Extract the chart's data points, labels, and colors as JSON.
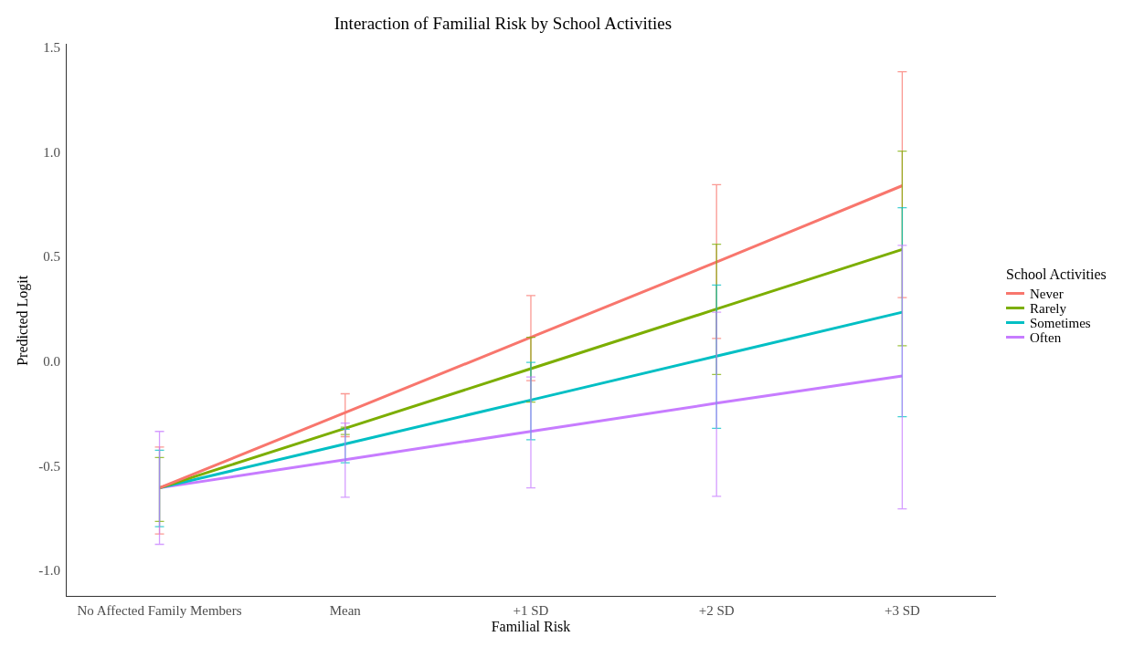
{
  "chart_data": {
    "type": "line",
    "title": "Interaction of Familial Risk by School Activities",
    "xlabel": "Familial Risk",
    "ylabel": "Predicted Logit",
    "legend_title": "School Activities",
    "legend": "right",
    "grid": false,
    "marker": "none",
    "categories": [
      "No Affected Family Members",
      "Mean",
      "+1 SD",
      "+2 SD",
      "+3 SD"
    ],
    "ylim": [
      -1.12,
      1.52
    ],
    "yticks": [
      {
        "value": -1,
        "label": "-1.0"
      },
      {
        "value": -0.5,
        "label": "-0.5"
      },
      {
        "value": 0,
        "label": "0.0"
      },
      {
        "value": 0.5,
        "label": "0.5"
      },
      {
        "value": 1,
        "label": "1.0"
      },
      {
        "value": 1.5,
        "label": "1.5"
      }
    ],
    "series": [
      {
        "name": "Never",
        "color": "#f8766d",
        "values": [
          -0.6,
          -0.24,
          0.12,
          0.48,
          0.845
        ],
        "errors": [
          [
            -0.82,
            -0.405
          ],
          [
            -0.355,
            -0.15
          ],
          [
            -0.087,
            0.32
          ],
          [
            0.115,
            0.85
          ],
          [
            0.31,
            1.39
          ]
        ]
      },
      {
        "name": "Rarely",
        "color": "#7cae00",
        "values": [
          -0.6,
          -0.315,
          -0.03,
          0.255,
          0.54
        ],
        "errors": [
          [
            -0.76,
            -0.455
          ],
          [
            -0.345,
            -0.31
          ],
          [
            -0.19,
            0.12
          ],
          [
            -0.058,
            0.565
          ],
          [
            0.08,
            1.01
          ]
        ]
      },
      {
        "name": "Sometimes",
        "color": "#00bfc4",
        "values": [
          -0.6,
          -0.39,
          -0.18,
          0.03,
          0.24
        ],
        "errors": [
          [
            -0.785,
            -0.42
          ],
          [
            -0.48,
            -0.32
          ],
          [
            -0.37,
            0.0
          ],
          [
            -0.315,
            0.37
          ],
          [
            -0.26,
            0.74
          ]
        ]
      },
      {
        "name": "Often",
        "color": "#c77cff",
        "values": [
          -0.6,
          -0.465,
          -0.33,
          -0.195,
          -0.065
        ],
        "errors": [
          [
            -0.87,
            -0.33
          ],
          [
            -0.645,
            -0.29
          ],
          [
            -0.6,
            -0.07
          ],
          [
            -0.64,
            0.24
          ],
          [
            -0.7,
            0.56
          ]
        ]
      }
    ]
  }
}
